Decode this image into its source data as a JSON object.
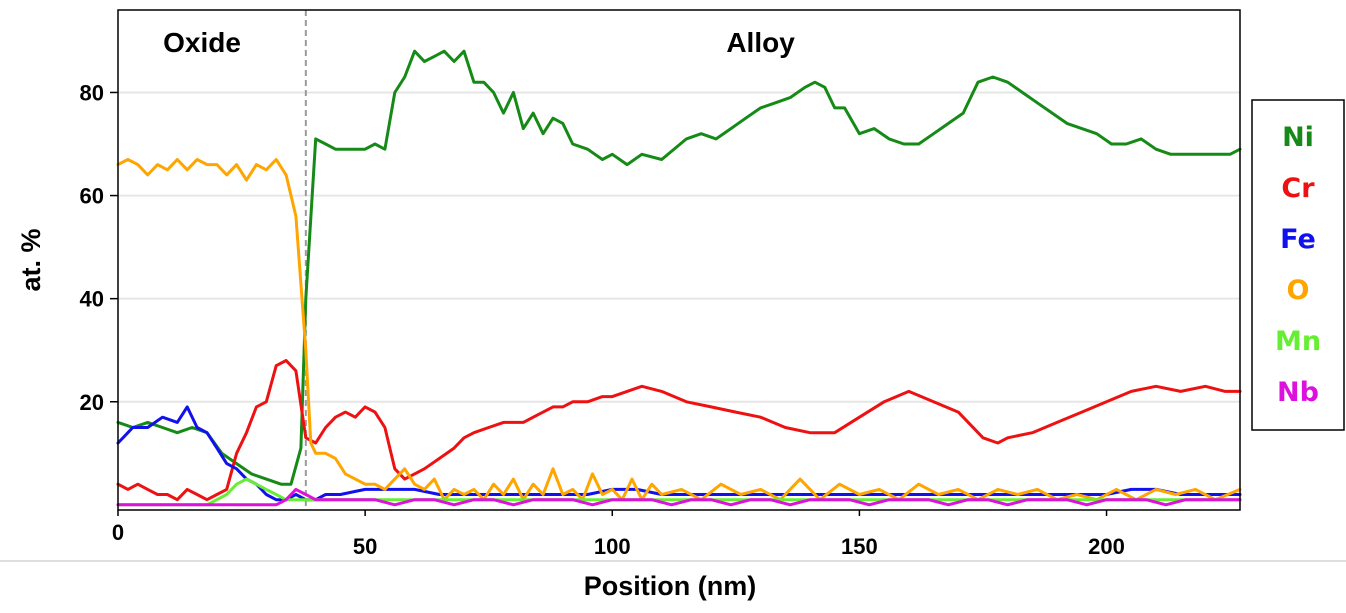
{
  "chart_data": {
    "type": "line",
    "title": "",
    "xlabel": "Position (nm)",
    "ylabel": "at. %",
    "xlim": [
      0,
      227
    ],
    "ylim": [
      -1,
      96
    ],
    "xticks": [
      0,
      50,
      100,
      150,
      200
    ],
    "yticks": [
      20,
      40,
      60,
      80
    ],
    "grid": "horizontal",
    "legend_position": "right",
    "region_labels": [
      {
        "text": "Oxide",
        "x": 17
      },
      {
        "text": "Alloy",
        "x": 130
      }
    ],
    "boundary_x": 38,
    "series": [
      {
        "name": "Ni",
        "color": "#168a16",
        "x": [
          0,
          3,
          6,
          9,
          12,
          15,
          18,
          21,
          24,
          27,
          30,
          33,
          35,
          37,
          38,
          40,
          42,
          44,
          46,
          48,
          50,
          52,
          54,
          56,
          58,
          60,
          62,
          64,
          66,
          68,
          70,
          72,
          74,
          76,
          78,
          80,
          82,
          84,
          86,
          88,
          90,
          92,
          95,
          98,
          100,
          103,
          106,
          110,
          115,
          118,
          121,
          124,
          127,
          130,
          133,
          136,
          139,
          141,
          143,
          145,
          147,
          150,
          153,
          156,
          159,
          162,
          165,
          168,
          171,
          174,
          177,
          180,
          183,
          186,
          189,
          192,
          195,
          198,
          201,
          204,
          207,
          210,
          213,
          216,
          219,
          222,
          225,
          227
        ],
        "values": [
          16,
          15,
          16,
          15,
          14,
          15,
          14,
          10,
          8,
          6,
          5,
          4,
          4,
          11,
          40,
          71,
          70,
          69,
          69,
          69,
          69,
          70,
          69,
          80,
          83,
          88,
          86,
          87,
          88,
          86,
          88,
          82,
          82,
          80,
          76,
          80,
          73,
          76,
          72,
          75,
          74,
          70,
          69,
          67,
          68,
          66,
          68,
          67,
          71,
          72,
          71,
          73,
          75,
          77,
          78,
          79,
          81,
          82,
          81,
          77,
          77,
          72,
          73,
          71,
          70,
          70,
          72,
          74,
          76,
          82,
          83,
          82,
          80,
          78,
          76,
          74,
          73,
          72,
          70,
          70,
          71,
          69,
          68,
          68,
          68,
          68,
          68,
          69
        ]
      },
      {
        "name": "Cr",
        "color": "#ee1111",
        "x": [
          0,
          2,
          4,
          6,
          8,
          10,
          12,
          14,
          16,
          18,
          20,
          22,
          24,
          26,
          28,
          30,
          32,
          34,
          36,
          38,
          40,
          42,
          44,
          46,
          48,
          50,
          52,
          54,
          56,
          58,
          60,
          62,
          65,
          68,
          70,
          72,
          75,
          78,
          80,
          82,
          84,
          86,
          88,
          90,
          92,
          95,
          98,
          100,
          103,
          106,
          110,
          115,
          120,
          125,
          130,
          135,
          140,
          145,
          150,
          155,
          160,
          165,
          170,
          175,
          178,
          180,
          185,
          190,
          195,
          200,
          205,
          210,
          215,
          220,
          224,
          227
        ],
        "values": [
          4,
          3,
          4,
          3,
          2,
          2,
          1,
          3,
          2,
          1,
          2,
          3,
          10,
          14,
          19,
          20,
          27,
          28,
          26,
          13,
          12,
          15,
          17,
          18,
          17,
          19,
          18,
          15,
          7,
          5,
          6,
          7,
          9,
          11,
          13,
          14,
          15,
          16,
          16,
          16,
          17,
          18,
          19,
          19,
          20,
          20,
          21,
          21,
          22,
          23,
          22,
          20,
          19,
          18,
          17,
          15,
          14,
          14,
          17,
          20,
          22,
          20,
          18,
          13,
          12,
          13,
          14,
          16,
          18,
          20,
          22,
          23,
          22,
          23,
          22,
          22
        ]
      },
      {
        "name": "Fe",
        "color": "#1111ee",
        "x": [
          0,
          3,
          6,
          9,
          12,
          14,
          16,
          18,
          20,
          22,
          24,
          26,
          28,
          30,
          32,
          34,
          36,
          38,
          40,
          42,
          45,
          50,
          55,
          60,
          65,
          70,
          75,
          80,
          85,
          90,
          95,
          100,
          105,
          110,
          115,
          120,
          125,
          130,
          135,
          140,
          145,
          150,
          155,
          160,
          165,
          170,
          175,
          180,
          185,
          190,
          195,
          200,
          205,
          210,
          215,
          220,
          227
        ],
        "values": [
          12,
          15,
          15,
          17,
          16,
          19,
          15,
          14,
          11,
          8,
          7,
          5,
          4,
          2,
          1,
          1,
          2,
          1,
          1,
          2,
          2,
          3,
          3,
          3,
          2,
          2,
          2,
          2,
          2,
          2,
          2,
          3,
          3,
          2,
          2,
          2,
          2,
          2,
          2,
          2,
          2,
          2,
          2,
          2,
          2,
          2,
          2,
          2,
          2,
          2,
          2,
          2,
          3,
          3,
          2,
          2,
          2
        ]
      },
      {
        "name": "O",
        "color": "#ffa500",
        "x": [
          0,
          2,
          4,
          6,
          8,
          10,
          12,
          14,
          16,
          18,
          20,
          22,
          24,
          26,
          28,
          30,
          32,
          34,
          36,
          38,
          39,
          40,
          42,
          44,
          46,
          48,
          50,
          52,
          54,
          56,
          58,
          60,
          62,
          64,
          66,
          68,
          70,
          72,
          74,
          76,
          78,
          80,
          82,
          84,
          86,
          88,
          90,
          92,
          94,
          96,
          98,
          100,
          102,
          104,
          106,
          108,
          110,
          114,
          118,
          122,
          126,
          130,
          134,
          138,
          142,
          146,
          150,
          154,
          158,
          162,
          166,
          170,
          174,
          178,
          182,
          186,
          190,
          194,
          198,
          202,
          206,
          210,
          214,
          218,
          222,
          227
        ],
        "values": [
          66,
          67,
          66,
          64,
          66,
          65,
          67,
          65,
          67,
          66,
          66,
          64,
          66,
          63,
          66,
          65,
          67,
          64,
          56,
          30,
          12,
          10,
          10,
          9,
          6,
          5,
          4,
          4,
          3,
          5,
          7,
          4,
          3,
          5,
          1,
          3,
          2,
          3,
          1,
          4,
          2,
          5,
          1,
          4,
          2,
          7,
          2,
          3,
          1,
          6,
          2,
          3,
          1,
          5,
          1,
          4,
          2,
          3,
          1,
          4,
          2,
          3,
          1,
          5,
          1,
          4,
          2,
          3,
          1,
          4,
          2,
          3,
          1,
          3,
          2,
          3,
          1,
          2,
          1,
          3,
          1,
          3,
          2,
          3,
          1,
          3
        ]
      },
      {
        "name": "Mn",
        "color": "#66ee33",
        "x": [
          0,
          4,
          8,
          12,
          16,
          18,
          20,
          22,
          24,
          26,
          28,
          30,
          32,
          34,
          36,
          38,
          40,
          45,
          50,
          60,
          70,
          80,
          90,
          100,
          110,
          120,
          130,
          140,
          150,
          160,
          170,
          180,
          190,
          200,
          210,
          220,
          227
        ],
        "values": [
          0,
          0,
          0,
          0,
          0,
          0,
          1,
          2,
          4,
          5,
          4,
          3,
          2,
          1,
          1,
          1,
          1,
          1,
          1,
          1,
          1,
          1,
          1,
          1,
          1,
          1,
          1,
          1,
          1,
          1,
          1,
          1,
          1,
          1,
          1,
          1,
          1
        ]
      },
      {
        "name": "Nb",
        "color": "#dd11dd",
        "x": [
          0,
          4,
          8,
          12,
          16,
          20,
          24,
          28,
          32,
          34,
          36,
          38,
          40,
          44,
          48,
          52,
          56,
          60,
          64,
          68,
          72,
          76,
          80,
          84,
          88,
          92,
          96,
          100,
          104,
          108,
          112,
          116,
          120,
          124,
          128,
          132,
          136,
          140,
          144,
          148,
          152,
          156,
          160,
          164,
          168,
          172,
          176,
          180,
          184,
          188,
          192,
          196,
          200,
          204,
          208,
          212,
          216,
          220,
          224,
          227
        ],
        "values": [
          0,
          0,
          0,
          0,
          0,
          0,
          0,
          0,
          0,
          1,
          3,
          2,
          1,
          1,
          1,
          1,
          0,
          1,
          1,
          0,
          1,
          1,
          0,
          1,
          1,
          1,
          0,
          1,
          1,
          1,
          0,
          1,
          1,
          0,
          1,
          1,
          0,
          1,
          1,
          1,
          0,
          1,
          1,
          1,
          0,
          1,
          1,
          0,
          1,
          1,
          1,
          0,
          1,
          1,
          1,
          0,
          1,
          1,
          1,
          1
        ]
      }
    ]
  }
}
